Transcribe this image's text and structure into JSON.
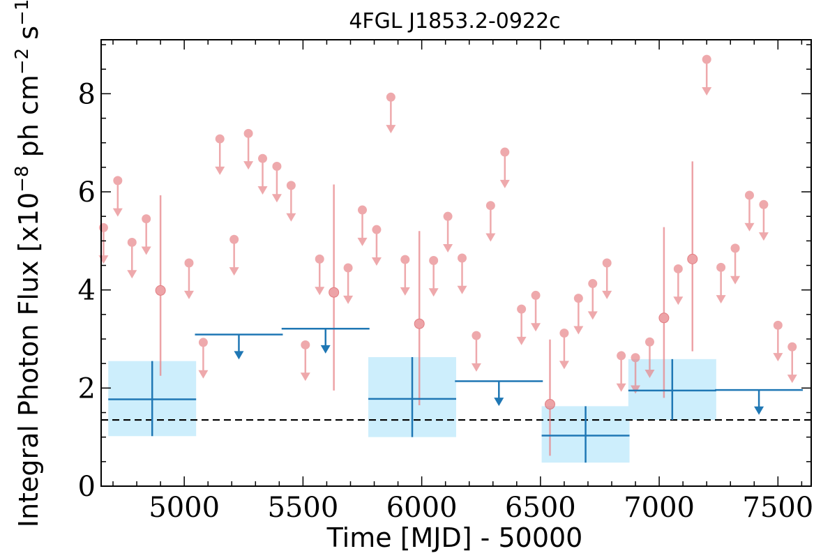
{
  "chart_data": {
    "type": "scatter",
    "title": "4FGL J1853.2-0922c",
    "xlabel": "Time [MJD] - 50000",
    "ylabel": "Integral Photon Flux [x10$^{-8}$ ph cm$^{-2}$ s$^{-1}$]",
    "ylabel_parts": {
      "base1": "Integral Photon Flux [x10",
      "exp1": "−8",
      "base2": " ph cm",
      "exp2": "−2",
      "base3": " s",
      "exp3": "−1",
      "base4": "]"
    },
    "xlim": [
      4650,
      7640
    ],
    "ylim": [
      0,
      9.1
    ],
    "xticks": [
      5000,
      5500,
      6000,
      6500,
      7000,
      7500
    ],
    "yticks": [
      0,
      2,
      4,
      6,
      8
    ],
    "grid": false,
    "colors": {
      "short_bins": "#e8858a",
      "long_bins": "#1f77b4",
      "error_box": "#cdeefc",
      "reference_line": "#000000"
    },
    "reference_line": {
      "y": 1.35,
      "style": "dashed"
    },
    "short_bins_upper_limits": [
      {
        "x": 4660,
        "y": 5.27
      },
      {
        "x": 4720,
        "y": 6.23
      },
      {
        "x": 4780,
        "y": 4.97
      },
      {
        "x": 4840,
        "y": 5.45
      },
      {
        "x": 5020,
        "y": 4.55
      },
      {
        "x": 5080,
        "y": 2.93
      },
      {
        "x": 5150,
        "y": 7.08
      },
      {
        "x": 5210,
        "y": 5.03
      },
      {
        "x": 5270,
        "y": 7.19
      },
      {
        "x": 5330,
        "y": 6.68
      },
      {
        "x": 5390,
        "y": 6.52
      },
      {
        "x": 5450,
        "y": 6.13
      },
      {
        "x": 5510,
        "y": 2.88
      },
      {
        "x": 5570,
        "y": 4.63
      },
      {
        "x": 5690,
        "y": 4.45
      },
      {
        "x": 5750,
        "y": 5.63
      },
      {
        "x": 5810,
        "y": 5.23
      },
      {
        "x": 5870,
        "y": 7.93
      },
      {
        "x": 5930,
        "y": 4.62
      },
      {
        "x": 6050,
        "y": 4.6
      },
      {
        "x": 6110,
        "y": 5.5
      },
      {
        "x": 6170,
        "y": 4.65
      },
      {
        "x": 6230,
        "y": 3.07
      },
      {
        "x": 6290,
        "y": 5.72
      },
      {
        "x": 6350,
        "y": 6.81
      },
      {
        "x": 6420,
        "y": 3.61
      },
      {
        "x": 6480,
        "y": 3.89
      },
      {
        "x": 6600,
        "y": 3.12
      },
      {
        "x": 6660,
        "y": 3.83
      },
      {
        "x": 6720,
        "y": 4.13
      },
      {
        "x": 6780,
        "y": 4.55
      },
      {
        "x": 6840,
        "y": 2.66
      },
      {
        "x": 6900,
        "y": 2.62
      },
      {
        "x": 6960,
        "y": 2.94
      },
      {
        "x": 7080,
        "y": 4.43
      },
      {
        "x": 7200,
        "y": 8.7
      },
      {
        "x": 7260,
        "y": 4.46
      },
      {
        "x": 7320,
        "y": 4.85
      },
      {
        "x": 7380,
        "y": 5.93
      },
      {
        "x": 7440,
        "y": 5.74
      },
      {
        "x": 7500,
        "y": 3.28
      },
      {
        "x": 7560,
        "y": 2.84
      }
    ],
    "short_bins_detections": [
      {
        "x": 4900,
        "y": 3.99,
        "ylo": 2.25,
        "yhi": 5.93
      },
      {
        "x": 5630,
        "y": 3.95,
        "ylo": 1.95,
        "yhi": 6.15
      },
      {
        "x": 5990,
        "y": 3.31,
        "ylo": 1.65,
        "yhi": 5.2
      },
      {
        "x": 6540,
        "y": 1.67,
        "ylo": 0.62,
        "yhi": 2.99
      },
      {
        "x": 7020,
        "y": 3.43,
        "ylo": 1.8,
        "yhi": 5.28
      },
      {
        "x": 7140,
        "y": 4.63,
        "ylo": 2.75,
        "yhi": 6.62
      }
    ],
    "long_bins_detections": [
      {
        "x": 4865,
        "xerr": 185,
        "y": 1.77,
        "ylo": 1.02,
        "yhi": 2.55
      },
      {
        "x": 5960,
        "xerr": 185,
        "y": 1.78,
        "ylo": 1.0,
        "yhi": 2.63
      },
      {
        "x": 6690,
        "xerr": 185,
        "y": 1.03,
        "ylo": 0.48,
        "yhi": 1.63
      },
      {
        "x": 7055,
        "xerr": 185,
        "y": 1.95,
        "ylo": 1.35,
        "yhi": 2.59
      }
    ],
    "long_bins_upper_limits": [
      {
        "x": 5230,
        "xerr": 185,
        "y": 3.09
      },
      {
        "x": 5595,
        "xerr": 185,
        "y": 3.21
      },
      {
        "x": 6325,
        "xerr": 185,
        "y": 2.14
      },
      {
        "x": 7420,
        "xerr": 185,
        "y": 1.96
      }
    ]
  }
}
